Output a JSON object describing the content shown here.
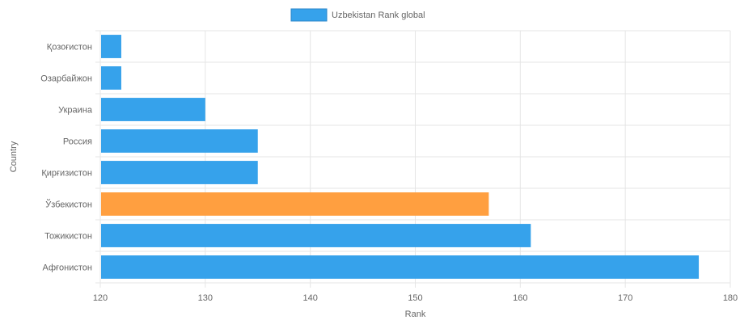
{
  "chart_data": {
    "type": "bar",
    "orientation": "horizontal",
    "categories": [
      "Қозоғистон",
      "Озарбайжон",
      "Украина",
      "Россия",
      "Қирғизистон",
      "Ўзбекистон",
      "Тожикистон",
      "Афғонистон"
    ],
    "series": [
      {
        "name": "Uzbekistan Rank global",
        "values": [
          122,
          122,
          130,
          135,
          135,
          157,
          161,
          177
        ],
        "color": "#36a2eb",
        "highlight_color": "#ff9f40",
        "highlight_index": 5
      }
    ],
    "xlabel": "Rank",
    "ylabel": "Country",
    "xlim": [
      120,
      180
    ],
    "xticks": [
      120,
      130,
      140,
      150,
      160,
      170,
      180
    ],
    "grid": true,
    "legend_position": "top-center"
  }
}
